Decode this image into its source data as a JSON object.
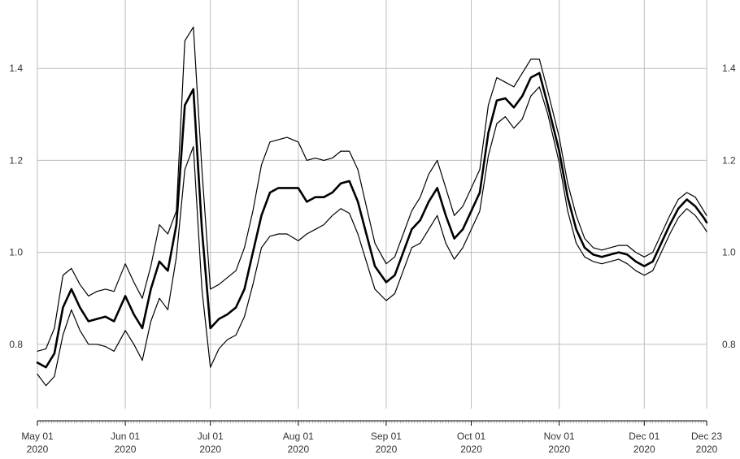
{
  "chart_data": {
    "type": "line",
    "title": "",
    "xlabel": "",
    "ylabel": "",
    "grid": true,
    "xlim": [
      "2020-05-01",
      "2020-12-23"
    ],
    "ylim": [
      0.66,
      1.54
    ],
    "y_ticks": [
      0.8,
      1.0,
      1.2,
      1.4
    ],
    "y_tick_labels": [
      "0.8",
      "1.0",
      "1.2",
      "1.4"
    ],
    "y_axis_sides": [
      "left",
      "right"
    ],
    "x_ticks": [
      {
        "date": "2020-05-01",
        "line1": "May 01",
        "line2": "2020"
      },
      {
        "date": "2020-06-01",
        "line1": "Jun 01",
        "line2": "2020"
      },
      {
        "date": "2020-07-01",
        "line1": "Jul 01",
        "line2": "2020"
      },
      {
        "date": "2020-08-01",
        "line1": "Aug 01",
        "line2": "2020"
      },
      {
        "date": "2020-09-01",
        "line1": "Sep 01",
        "line2": "2020"
      },
      {
        "date": "2020-10-01",
        "line1": "Oct 01",
        "line2": "2020"
      },
      {
        "date": "2020-11-01",
        "line1": "Nov 01",
        "line2": "2020"
      },
      {
        "date": "2020-12-01",
        "line1": "Dec 01",
        "line2": "2020"
      },
      {
        "date": "2020-12-23",
        "line1": "Dec 23",
        "line2": "2020"
      }
    ],
    "colors": {
      "series": "#000000",
      "grid": "#bdbdbd",
      "text": "#333333"
    },
    "series": [
      {
        "role": "upper",
        "x": [
          "2020-05-01",
          "2020-05-04",
          "2020-05-07",
          "2020-05-10",
          "2020-05-13",
          "2020-05-16",
          "2020-05-19",
          "2020-05-22",
          "2020-05-25",
          "2020-05-28",
          "2020-06-01",
          "2020-06-04",
          "2020-06-07",
          "2020-06-10",
          "2020-06-13",
          "2020-06-16",
          "2020-06-19",
          "2020-06-22",
          "2020-06-25",
          "2020-06-28",
          "2020-07-01",
          "2020-07-04",
          "2020-07-07",
          "2020-07-10",
          "2020-07-13",
          "2020-07-16",
          "2020-07-19",
          "2020-07-22",
          "2020-07-25",
          "2020-07-28",
          "2020-08-01",
          "2020-08-04",
          "2020-08-07",
          "2020-08-10",
          "2020-08-13",
          "2020-08-16",
          "2020-08-19",
          "2020-08-22",
          "2020-08-25",
          "2020-08-28",
          "2020-09-01",
          "2020-09-04",
          "2020-09-07",
          "2020-09-10",
          "2020-09-13",
          "2020-09-16",
          "2020-09-19",
          "2020-09-22",
          "2020-09-25",
          "2020-09-28",
          "2020-10-01",
          "2020-10-04",
          "2020-10-07",
          "2020-10-10",
          "2020-10-13",
          "2020-10-16",
          "2020-10-19",
          "2020-10-22",
          "2020-10-25",
          "2020-10-28",
          "2020-11-01",
          "2020-11-04",
          "2020-11-07",
          "2020-11-10",
          "2020-11-13",
          "2020-11-16",
          "2020-11-19",
          "2020-11-22",
          "2020-11-25",
          "2020-11-28",
          "2020-12-01",
          "2020-12-04",
          "2020-12-07",
          "2020-12-10",
          "2020-12-13",
          "2020-12-16",
          "2020-12-19",
          "2020-12-22",
          "2020-12-23"
        ],
        "values": [
          0.785,
          0.79,
          0.835,
          0.95,
          0.965,
          0.93,
          0.905,
          0.915,
          0.92,
          0.915,
          0.975,
          0.935,
          0.9,
          0.97,
          1.06,
          1.04,
          1.09,
          1.46,
          1.49,
          1.18,
          0.92,
          0.93,
          0.945,
          0.96,
          1.01,
          1.09,
          1.19,
          1.24,
          1.245,
          1.25,
          1.24,
          1.2,
          1.205,
          1.2,
          1.205,
          1.22,
          1.22,
          1.18,
          1.1,
          1.02,
          0.975,
          0.99,
          1.04,
          1.09,
          1.12,
          1.17,
          1.2,
          1.14,
          1.08,
          1.1,
          1.14,
          1.18,
          1.32,
          1.38,
          1.37,
          1.36,
          1.39,
          1.42,
          1.42,
          1.35,
          1.25,
          1.15,
          1.08,
          1.03,
          1.01,
          1.005,
          1.01,
          1.015,
          1.015,
          1.0,
          0.99,
          1.0,
          1.04,
          1.08,
          1.115,
          1.13,
          1.12,
          1.09,
          1.08
        ]
      },
      {
        "role": "central",
        "x": [
          "2020-05-01",
          "2020-05-04",
          "2020-05-07",
          "2020-05-10",
          "2020-05-13",
          "2020-05-16",
          "2020-05-19",
          "2020-05-22",
          "2020-05-25",
          "2020-05-28",
          "2020-06-01",
          "2020-06-04",
          "2020-06-07",
          "2020-06-10",
          "2020-06-13",
          "2020-06-16",
          "2020-06-19",
          "2020-06-22",
          "2020-06-25",
          "2020-06-28",
          "2020-07-01",
          "2020-07-04",
          "2020-07-07",
          "2020-07-10",
          "2020-07-13",
          "2020-07-16",
          "2020-07-19",
          "2020-07-22",
          "2020-07-25",
          "2020-07-28",
          "2020-08-01",
          "2020-08-04",
          "2020-08-07",
          "2020-08-10",
          "2020-08-13",
          "2020-08-16",
          "2020-08-19",
          "2020-08-22",
          "2020-08-25",
          "2020-08-28",
          "2020-09-01",
          "2020-09-04",
          "2020-09-07",
          "2020-09-10",
          "2020-09-13",
          "2020-09-16",
          "2020-09-19",
          "2020-09-22",
          "2020-09-25",
          "2020-09-28",
          "2020-10-01",
          "2020-10-04",
          "2020-10-07",
          "2020-10-10",
          "2020-10-13",
          "2020-10-16",
          "2020-10-19",
          "2020-10-22",
          "2020-10-25",
          "2020-10-28",
          "2020-11-01",
          "2020-11-04",
          "2020-11-07",
          "2020-11-10",
          "2020-11-13",
          "2020-11-16",
          "2020-11-19",
          "2020-11-22",
          "2020-11-25",
          "2020-11-28",
          "2020-12-01",
          "2020-12-04",
          "2020-12-07",
          "2020-12-10",
          "2020-12-13",
          "2020-12-16",
          "2020-12-19",
          "2020-12-22",
          "2020-12-23"
        ],
        "values": [
          0.76,
          0.75,
          0.78,
          0.88,
          0.92,
          0.88,
          0.85,
          0.855,
          0.86,
          0.85,
          0.905,
          0.865,
          0.835,
          0.92,
          0.98,
          0.96,
          1.06,
          1.32,
          1.355,
          1.05,
          0.835,
          0.855,
          0.865,
          0.88,
          0.92,
          1.0,
          1.08,
          1.13,
          1.14,
          1.14,
          1.14,
          1.11,
          1.12,
          1.12,
          1.13,
          1.15,
          1.155,
          1.11,
          1.04,
          0.97,
          0.935,
          0.95,
          1.0,
          1.05,
          1.07,
          1.11,
          1.14,
          1.08,
          1.03,
          1.05,
          1.09,
          1.13,
          1.26,
          1.33,
          1.335,
          1.315,
          1.34,
          1.38,
          1.39,
          1.32,
          1.22,
          1.12,
          1.05,
          1.01,
          0.995,
          0.99,
          0.995,
          1.0,
          0.995,
          0.98,
          0.97,
          0.98,
          1.02,
          1.06,
          1.095,
          1.115,
          1.1,
          1.075,
          1.065
        ]
      },
      {
        "role": "lower",
        "x": [
          "2020-05-01",
          "2020-05-04",
          "2020-05-07",
          "2020-05-10",
          "2020-05-13",
          "2020-05-16",
          "2020-05-19",
          "2020-05-22",
          "2020-05-25",
          "2020-05-28",
          "2020-06-01",
          "2020-06-04",
          "2020-06-07",
          "2020-06-10",
          "2020-06-13",
          "2020-06-16",
          "2020-06-19",
          "2020-06-22",
          "2020-06-25",
          "2020-06-28",
          "2020-07-01",
          "2020-07-04",
          "2020-07-07",
          "2020-07-10",
          "2020-07-13",
          "2020-07-16",
          "2020-07-19",
          "2020-07-22",
          "2020-07-25",
          "2020-07-28",
          "2020-08-01",
          "2020-08-04",
          "2020-08-07",
          "2020-08-10",
          "2020-08-13",
          "2020-08-16",
          "2020-08-19",
          "2020-08-22",
          "2020-08-25",
          "2020-08-28",
          "2020-09-01",
          "2020-09-04",
          "2020-09-07",
          "2020-09-10",
          "2020-09-13",
          "2020-09-16",
          "2020-09-19",
          "2020-09-22",
          "2020-09-25",
          "2020-09-28",
          "2020-10-01",
          "2020-10-04",
          "2020-10-07",
          "2020-10-10",
          "2020-10-13",
          "2020-10-16",
          "2020-10-19",
          "2020-10-22",
          "2020-10-25",
          "2020-10-28",
          "2020-11-01",
          "2020-11-04",
          "2020-11-07",
          "2020-11-10",
          "2020-11-13",
          "2020-11-16",
          "2020-11-19",
          "2020-11-22",
          "2020-11-25",
          "2020-11-28",
          "2020-12-01",
          "2020-12-04",
          "2020-12-07",
          "2020-12-10",
          "2020-12-13",
          "2020-12-16",
          "2020-12-19",
          "2020-12-22",
          "2020-12-23"
        ],
        "values": [
          0.735,
          0.71,
          0.73,
          0.82,
          0.875,
          0.83,
          0.8,
          0.8,
          0.795,
          0.785,
          0.83,
          0.8,
          0.765,
          0.85,
          0.9,
          0.875,
          0.99,
          1.18,
          1.23,
          0.92,
          0.75,
          0.79,
          0.81,
          0.82,
          0.86,
          0.93,
          1.01,
          1.035,
          1.04,
          1.04,
          1.025,
          1.04,
          1.05,
          1.06,
          1.08,
          1.095,
          1.085,
          1.04,
          0.98,
          0.92,
          0.895,
          0.91,
          0.96,
          1.01,
          1.02,
          1.05,
          1.08,
          1.02,
          0.985,
          1.01,
          1.05,
          1.09,
          1.21,
          1.28,
          1.295,
          1.27,
          1.29,
          1.34,
          1.36,
          1.3,
          1.195,
          1.09,
          1.02,
          0.99,
          0.98,
          0.975,
          0.98,
          0.985,
          0.975,
          0.96,
          0.95,
          0.96,
          1.0,
          1.04,
          1.075,
          1.095,
          1.08,
          1.055,
          1.045
        ]
      }
    ]
  }
}
